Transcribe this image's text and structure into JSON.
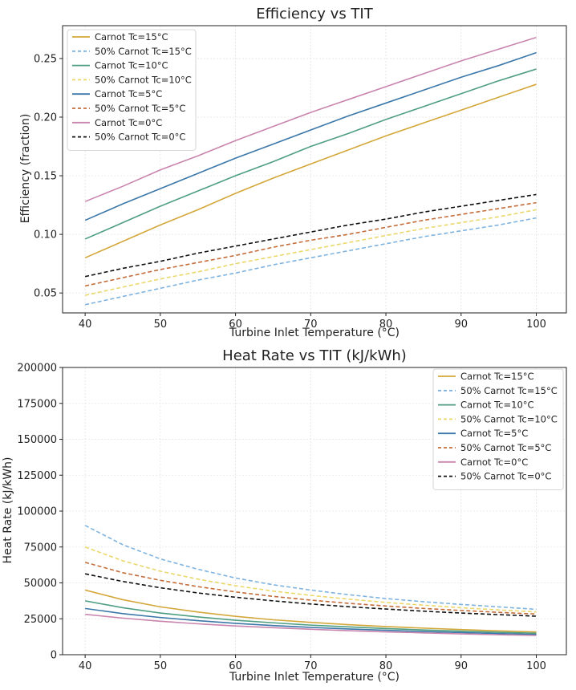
{
  "chart_data": [
    {
      "type": "line",
      "title": "Efficiency vs TIT",
      "xlabel": "Turbine Inlet Temperature (°C)",
      "ylabel": "Efficiency (fraction)",
      "xlim": [
        37,
        104
      ],
      "ylim": [
        0.033,
        0.278
      ],
      "xticks": [
        40,
        50,
        60,
        70,
        80,
        90,
        100
      ],
      "yticks": [
        0.05,
        0.1,
        0.15,
        0.2,
        0.25
      ],
      "ytick_labels": [
        "0.05",
        "0.10",
        "0.15",
        "0.20",
        "0.25"
      ],
      "xtick_labels": [
        "40",
        "50",
        "60",
        "70",
        "80",
        "90",
        "100"
      ],
      "grid": true,
      "legend_position": "top-left",
      "x": [
        40,
        45,
        50,
        55,
        60,
        65,
        70,
        75,
        80,
        85,
        90,
        95,
        100
      ],
      "series": [
        {
          "name": "Carnot Tc=15°C",
          "color": "#d4a73a",
          "dashed": false,
          "values": [
            0.08,
            0.094,
            0.108,
            0.121,
            0.135,
            0.148,
            0.16,
            0.172,
            0.184,
            0.195,
            0.206,
            0.217,
            0.228
          ]
        },
        {
          "name": "50% Carnot Tc=15°C",
          "color": "#7eb3e0",
          "dashed": true,
          "values": [
            0.04,
            0.047,
            0.054,
            0.061,
            0.067,
            0.074,
            0.08,
            0.086,
            0.092,
            0.098,
            0.103,
            0.108,
            0.114
          ]
        },
        {
          "name": "Carnot Tc=10°C",
          "color": "#4f9e82",
          "dashed": false,
          "values": [
            0.096,
            0.11,
            0.124,
            0.137,
            0.15,
            0.162,
            0.175,
            0.186,
            0.198,
            0.209,
            0.22,
            0.231,
            0.241
          ]
        },
        {
          "name": "50% Carnot Tc=10°C",
          "color": "#ead86a",
          "dashed": true,
          "values": [
            0.048,
            0.055,
            0.062,
            0.068,
            0.075,
            0.081,
            0.087,
            0.093,
            0.099,
            0.105,
            0.11,
            0.115,
            0.121
          ]
        },
        {
          "name": "Carnot Tc=5°C",
          "color": "#3b77a8",
          "dashed": false,
          "values": [
            0.112,
            0.126,
            0.139,
            0.152,
            0.165,
            0.177,
            0.189,
            0.201,
            0.212,
            0.223,
            0.234,
            0.244,
            0.255
          ]
        },
        {
          "name": "50% Carnot Tc=5°C",
          "color": "#c46d3a",
          "dashed": true,
          "values": [
            0.056,
            0.063,
            0.07,
            0.076,
            0.082,
            0.089,
            0.095,
            0.1,
            0.106,
            0.112,
            0.117,
            0.122,
            0.127
          ]
        },
        {
          "name": "Carnot Tc=0°C",
          "color": "#c985ae",
          "dashed": false,
          "values": [
            0.128,
            0.141,
            0.155,
            0.167,
            0.18,
            0.192,
            0.204,
            0.215,
            0.226,
            0.237,
            0.248,
            0.258,
            0.268
          ]
        },
        {
          "name": "50% Carnot Tc=0°C",
          "color": "#111111",
          "dashed": true,
          "values": [
            0.064,
            0.071,
            0.077,
            0.084,
            0.09,
            0.096,
            0.102,
            0.108,
            0.113,
            0.119,
            0.124,
            0.129,
            0.134
          ]
        }
      ]
    },
    {
      "type": "line",
      "title": "Heat Rate vs TIT (kJ/kWh)",
      "xlabel": "Turbine Inlet Temperature (°C)",
      "ylabel": "Heat Rate (kJ/kWh)",
      "xlim": [
        37,
        104
      ],
      "ylim": [
        0,
        200000
      ],
      "xticks": [
        40,
        50,
        60,
        70,
        80,
        90,
        100
      ],
      "yticks": [
        0,
        25000,
        50000,
        75000,
        100000,
        125000,
        150000,
        175000,
        200000
      ],
      "ytick_labels": [
        "0",
        "25000",
        "50000",
        "75000",
        "100000",
        "125000",
        "150000",
        "175000",
        "200000"
      ],
      "xtick_labels": [
        "40",
        "50",
        "60",
        "70",
        "80",
        "90",
        "100"
      ],
      "grid": true,
      "legend_position": "top-right",
      "x": [
        40,
        45,
        50,
        55,
        60,
        65,
        70,
        75,
        80,
        85,
        90,
        95,
        100
      ],
      "series": [
        {
          "name": "Carnot Tc=15°C",
          "color": "#d4a73a",
          "dashed": false,
          "values": [
            45000,
            38300,
            33300,
            29700,
            26700,
            24300,
            22500,
            20900,
            19600,
            18500,
            17500,
            16600,
            15800
          ]
        },
        {
          "name": "50% Carnot Tc=15°C",
          "color": "#7eb3e0",
          "dashed": true,
          "values": [
            90000,
            76600,
            66700,
            59500,
            53400,
            48700,
            45000,
            41800,
            39100,
            36900,
            35000,
            33300,
            31600
          ]
        },
        {
          "name": "Carnot Tc=10°C",
          "color": "#4f9e82",
          "dashed": false,
          "values": [
            37500,
            32700,
            29000,
            26300,
            24000,
            22200,
            20600,
            19400,
            18200,
            17200,
            16400,
            15600,
            14900
          ]
        },
        {
          "name": "50% Carnot Tc=10°C",
          "color": "#ead86a",
          "dashed": true,
          "values": [
            75000,
            65400,
            58100,
            52600,
            48000,
            44300,
            41300,
            38700,
            36400,
            34500,
            32700,
            31200,
            29800
          ]
        },
        {
          "name": "Carnot Tc=5°C",
          "color": "#3b77a8",
          "dashed": false,
          "values": [
            32200,
            28600,
            25900,
            23700,
            21800,
            20300,
            19000,
            17900,
            17000,
            16100,
            15400,
            14700,
            14100
          ]
        },
        {
          "name": "50% Carnot Tc=5°C",
          "color": "#c46d3a",
          "dashed": true,
          "values": [
            64300,
            57100,
            51800,
            47400,
            43700,
            40600,
            38000,
            35800,
            33900,
            32200,
            30800,
            29500,
            28300
          ]
        },
        {
          "name": "Carnot Tc=0°C",
          "color": "#c985ae",
          "dashed": false,
          "values": [
            28100,
            25500,
            23300,
            21500,
            20000,
            18800,
            17700,
            16700,
            15900,
            15200,
            14500,
            13900,
            13400
          ]
        },
        {
          "name": "50% Carnot Tc=0°C",
          "color": "#111111",
          "dashed": true,
          "values": [
            56300,
            51000,
            46600,
            43000,
            40000,
            37500,
            35300,
            33400,
            31800,
            30300,
            29000,
            27900,
            26800
          ]
        }
      ]
    }
  ]
}
